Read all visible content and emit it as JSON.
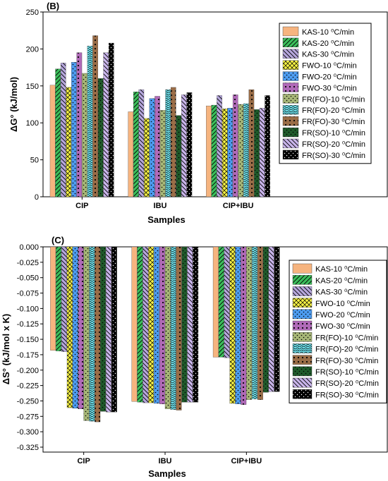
{
  "colors": {
    "KAS-10": "#f6b47f",
    "KAS-20": "#3bbf5b",
    "KAS-30": "#b5a6dc",
    "FWO-10": "#f6f244",
    "FWO-20": "#4d9cf0",
    "FWO-30": "#b06ab8",
    "FR(FO)-10": "#a7b777",
    "FR(FO)-20": "#6fe3ee",
    "FR(FO)-30": "#9a6d47",
    "FR(SO)-10": "#1f5a2a",
    "FR(SO)-20": "#c8b4ea",
    "FR(SO)-30": "#000000"
  },
  "chart_data": [
    {
      "type": "bar",
      "panel_label": "(B)",
      "title": "",
      "ylabel": "ΔG° (kJ/mol)",
      "xlabel": "Samples",
      "ylim": [
        0,
        250
      ],
      "yticks": [
        "0",
        "50",
        "100",
        "150",
        "200",
        "250"
      ],
      "legend_position": "right",
      "categories": [
        "CIP",
        "IBU",
        "CIP+IBU"
      ],
      "series": [
        {
          "name": "KAS-10 ⁰C/min",
          "key": "KAS-10",
          "values": [
            151,
            115,
            123
          ]
        },
        {
          "name": "KAS-20 ⁰C/min",
          "key": "KAS-20",
          "values": [
            173,
            142,
            124
          ]
        },
        {
          "name": "KAS-30 ⁰C/min",
          "key": "KAS-30",
          "values": [
            181,
            145,
            137
          ]
        },
        {
          "name": "FWO-10 ⁰C/min",
          "key": "FWO-10",
          "values": [
            148,
            106,
            119
          ]
        },
        {
          "name": "FWO-20 ⁰C/min",
          "key": "FWO-20",
          "values": [
            182,
            133,
            120
          ]
        },
        {
          "name": "FWO-30 ⁰C/min",
          "key": "FWO-30",
          "values": [
            195,
            136,
            138
          ]
        },
        {
          "name": "FR(FO)-10 ⁰C/min",
          "key": "FR(FO)-10",
          "values": [
            167,
            117,
            125
          ]
        },
        {
          "name": "FR(FO)-20 ⁰C/min",
          "key": "FR(FO)-20",
          "values": [
            204,
            145,
            126
          ]
        },
        {
          "name": "FR(FO)-30 ⁰C/min",
          "key": "FR(FO)-30",
          "values": [
            218,
            148,
            145
          ]
        },
        {
          "name": "FR(SO)-10 ⁰C/min",
          "key": "FR(SO)-10",
          "values": [
            160,
            110,
            118
          ]
        },
        {
          "name": "FR(SO)-20 ⁰C/min",
          "key": "FR(SO)-20",
          "values": [
            195,
            138,
            120
          ]
        },
        {
          "name": "FR(SO)-30 ⁰C/min",
          "key": "FR(SO)-30",
          "values": [
            208,
            141,
            137
          ]
        }
      ]
    },
    {
      "type": "bar",
      "panel_label": "(C)",
      "title": "",
      "ylabel": "ΔS° (kJ/mol x K)",
      "xlabel": "Samples",
      "ylim": [
        -0.325,
        0
      ],
      "yticks": [
        "0.000",
        "-0.025",
        "-0.050",
        "-0.075",
        "-0.100",
        "-0.125",
        "-0.150",
        "-0.175",
        "-0.200",
        "-0.225",
        "-0.250",
        "-0.275",
        "-0.300",
        "-0.325"
      ],
      "legend_position": "right",
      "categories": [
        "CIP",
        "IBU",
        "CIP+IBU"
      ],
      "series": [
        {
          "name": "KAS-10 ⁰C/min",
          "key": "KAS-10",
          "values": [
            -0.168,
            -0.251,
            -0.179
          ]
        },
        {
          "name": "KAS-20 ⁰C/min",
          "key": "KAS-20",
          "values": [
            -0.169,
            -0.252,
            -0.179
          ]
        },
        {
          "name": "KAS-30 ⁰C/min",
          "key": "KAS-30",
          "values": [
            -0.17,
            -0.253,
            -0.18
          ]
        },
        {
          "name": "FWO-10 ⁰C/min",
          "key": "FWO-10",
          "values": [
            -0.261,
            -0.253,
            -0.254
          ]
        },
        {
          "name": "FWO-20 ⁰C/min",
          "key": "FWO-20",
          "values": [
            -0.262,
            -0.254,
            -0.255
          ]
        },
        {
          "name": "FWO-30 ⁰C/min",
          "key": "FWO-30",
          "values": [
            -0.263,
            -0.255,
            -0.256
          ]
        },
        {
          "name": "FR(FO)-10 ⁰C/min",
          "key": "FR(FO)-10",
          "values": [
            -0.282,
            -0.263,
            -0.248
          ]
        },
        {
          "name": "FR(FO)-20 ⁰C/min",
          "key": "FR(FO)-20",
          "values": [
            -0.283,
            -0.264,
            -0.247
          ]
        },
        {
          "name": "FR(FO)-30 ⁰C/min",
          "key": "FR(FO)-30",
          "values": [
            -0.284,
            -0.265,
            -0.248
          ]
        },
        {
          "name": "FR(SO)-10 ⁰C/min",
          "key": "FR(SO)-10",
          "values": [
            -0.267,
            -0.252,
            -0.236
          ]
        },
        {
          "name": "FR(SO)-20 ⁰C/min",
          "key": "FR(SO)-20",
          "values": [
            -0.268,
            -0.252,
            -0.235
          ]
        },
        {
          "name": "FR(SO)-30 ⁰C/min",
          "key": "FR(SO)-30",
          "values": [
            -0.268,
            -0.252,
            -0.235
          ]
        }
      ]
    }
  ]
}
